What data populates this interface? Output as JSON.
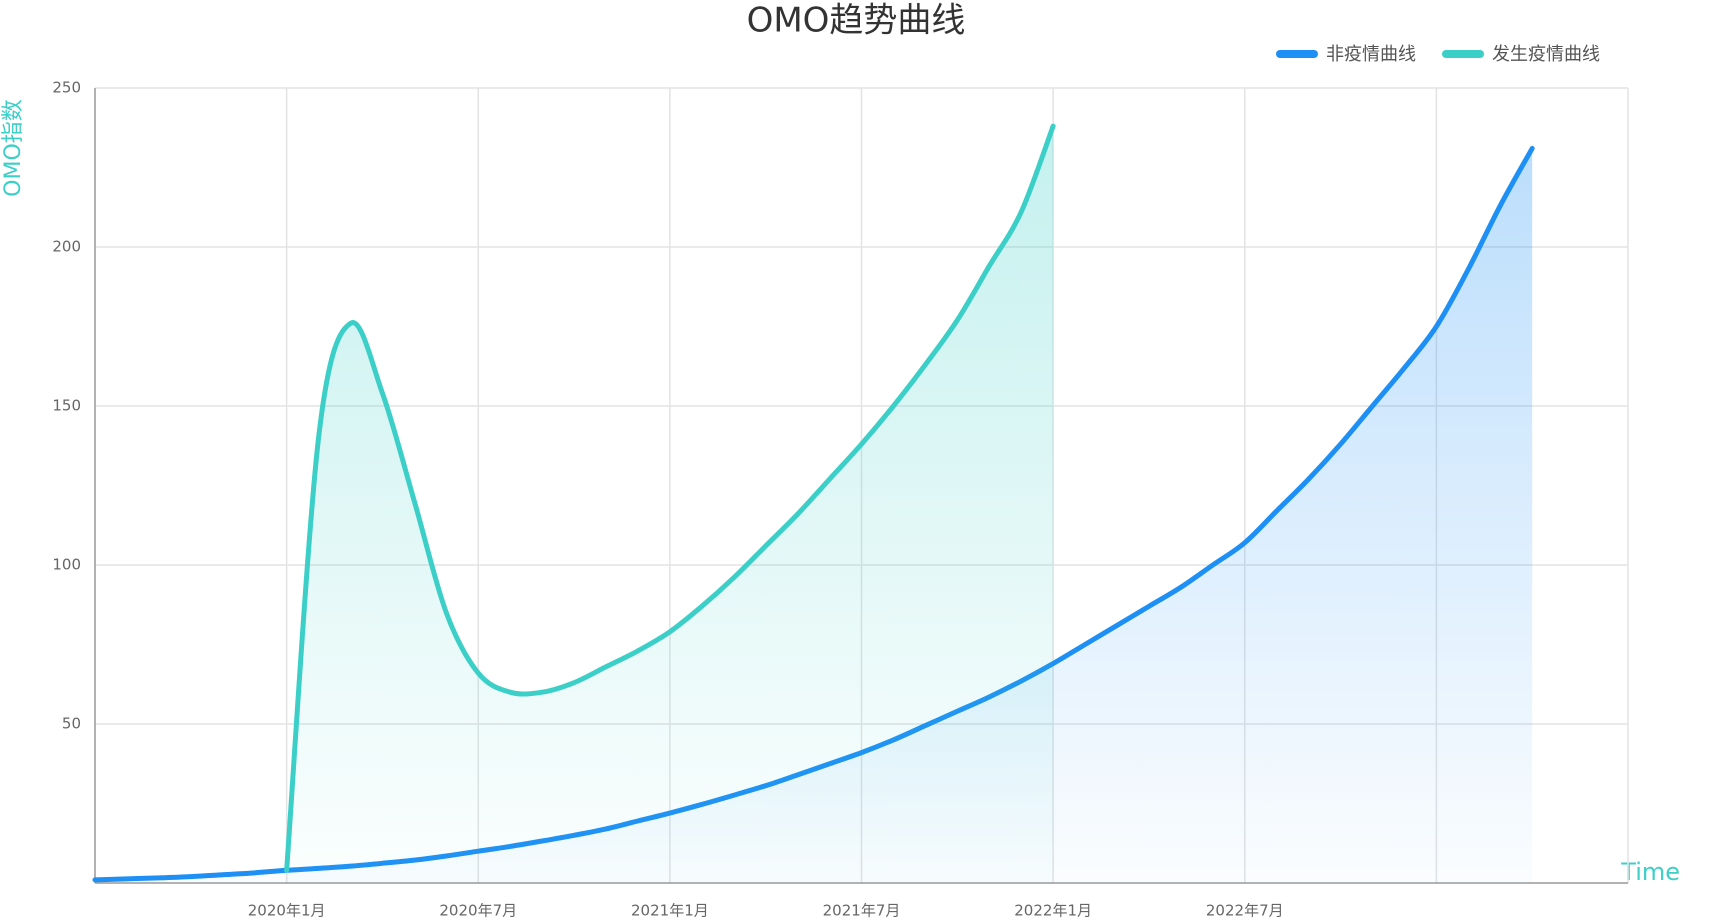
{
  "chart_data": {
    "type": "line",
    "title": "OMO趋势曲线",
    "y_label": "OMO指数",
    "x_label": "Time",
    "categories": [
      null,
      null,
      null,
      null,
      null,
      null,
      "2020年1月",
      null,
      null,
      null,
      null,
      null,
      "2020年7月",
      null,
      null,
      null,
      null,
      null,
      "2021年1月",
      null,
      null,
      null,
      null,
      null,
      "2021年7月",
      null,
      null,
      null,
      null,
      null,
      "2022年1月",
      null,
      null,
      null,
      null,
      null,
      "2022年7月",
      null,
      null,
      null,
      null,
      null,
      null,
      null,
      null,
      null,
      null,
      null,
      null
    ],
    "series": [
      {
        "name": "非疫情曲线",
        "color": "#1e90f5",
        "values": [
          1,
          1.3,
          1.6,
          2,
          2.6,
          3.2,
          4,
          4.6,
          5.3,
          6.2,
          7.2,
          8.5,
          10,
          11.5,
          13.2,
          15,
          17,
          19.5,
          22,
          24.7,
          27.6,
          30.6,
          34,
          37.5,
          41,
          45,
          49.5,
          54,
          58.5,
          63.5,
          69,
          75,
          81,
          87,
          93,
          100,
          107,
          117,
          127,
          138,
          150,
          162,
          175,
          193,
          213,
          231,
          null,
          null,
          null
        ]
      },
      {
        "name": "发生疫情曲线",
        "color": "#3ccfc8",
        "values": [
          null,
          null,
          null,
          null,
          null,
          null,
          4,
          140,
          176,
          154,
          120,
          85,
          66,
          60,
          60,
          63,
          68,
          73,
          79,
          87,
          96,
          106,
          116,
          127,
          138,
          150,
          163,
          177,
          194,
          211,
          238,
          null,
          null,
          null,
          null,
          null,
          null,
          null,
          null,
          null,
          null,
          null,
          null,
          null,
          null,
          null,
          null,
          null,
          null
        ]
      }
    ],
    "ylim": [
      0,
      250
    ],
    "yticks": [
      50,
      100,
      150,
      200,
      250
    ],
    "grid": true,
    "legend": "top-right"
  }
}
